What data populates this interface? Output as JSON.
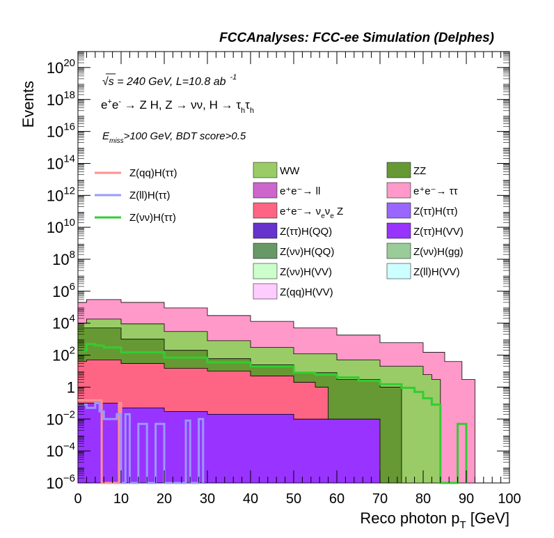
{
  "header": {
    "title": "FCCAnalyses: FCC-ee Simulation (Delphes)"
  },
  "annotations": {
    "line1": "√s = 240 GeV, L=10.8 ab",
    "line1_sup": "-1",
    "line2": "e⁺e⁻ → Z H, Z → νν, H → τhτh",
    "line3": "Emiss>100 GeV, BDT score>0.5"
  },
  "chart_data": {
    "type": "area",
    "title": "FCCAnalyses: FCC-ee Simulation (Delphes)",
    "xlabel": "Reco photon pT [GeV]",
    "ylabel": "Events",
    "xlim": [
      0,
      100
    ],
    "ylim": [
      1e-06,
      1e+21
    ],
    "log_y": true,
    "grid": false,
    "legend_placement": "top",
    "x_ticks": [
      0,
      10,
      20,
      30,
      40,
      50,
      60,
      70,
      80,
      90,
      100
    ],
    "x_tick_labels": [
      "0",
      "10",
      "20",
      "30",
      "40",
      "50",
      "60",
      "70",
      "80",
      "90",
      "100"
    ],
    "y_ticks": [
      1e-06,
      0.0001,
      0.01,
      1,
      100,
      10000.0,
      1000000.0,
      100000000.0,
      10000000000.0,
      1000000000000.0,
      100000000000000.0,
      1e+16,
      1e+18,
      1e+20
    ],
    "y_tick_labels": [
      {
        "base": "10",
        "exp": "−6"
      },
      {
        "base": "10",
        "exp": "−4"
      },
      {
        "base": "10",
        "exp": "−2"
      },
      {
        "base": "1",
        "exp": ""
      },
      {
        "base": "10",
        "exp": "2"
      },
      {
        "base": "10",
        "exp": "4"
      },
      {
        "base": "10",
        "exp": "6"
      },
      {
        "base": "10",
        "exp": "8"
      },
      {
        "base": "10",
        "exp": "10"
      },
      {
        "base": "10",
        "exp": "12"
      },
      {
        "base": "10",
        "exp": "14"
      },
      {
        "base": "10",
        "exp": "16"
      },
      {
        "base": "10",
        "exp": "18"
      },
      {
        "base": "10",
        "exp": "20"
      }
    ],
    "bin_edges": [
      0,
      92
    ],
    "stacked_series": [
      {
        "name": "e⁺e⁻→ ττ",
        "color": "#fe99c9",
        "points": [
          [
            0,
            200000.0
          ],
          [
            2,
            300000.0
          ],
          [
            10,
            200000.0
          ],
          [
            20,
            90000.0
          ],
          [
            30,
            30000.0
          ],
          [
            40,
            13000.0
          ],
          [
            50,
            5000.0
          ],
          [
            60,
            1800.0
          ],
          [
            70,
            600.0
          ],
          [
            80,
            150.0
          ],
          [
            85,
            40.0
          ],
          [
            89,
            3
          ],
          [
            92,
            3
          ]
        ]
      },
      {
        "name": "WW",
        "color": "#99cc66",
        "points": [
          [
            0,
            10000.0
          ],
          [
            2,
            18000.0
          ],
          [
            10,
            9000.0
          ],
          [
            20,
            3000.0
          ],
          [
            30,
            800.0
          ],
          [
            40,
            300.0
          ],
          [
            50,
            120.0
          ],
          [
            60,
            50
          ],
          [
            70,
            20
          ],
          [
            80,
            6
          ],
          [
            82,
            3
          ],
          [
            84,
            0.3
          ]
        ]
      },
      {
        "name": "ZZ",
        "color": "#669933",
        "points": [
          [
            0,
            5000.0
          ],
          [
            2,
            5000.0
          ],
          [
            10,
            1000.0
          ],
          [
            20,
            200.0
          ],
          [
            30,
            60
          ],
          [
            40,
            25
          ],
          [
            50,
            8
          ],
          [
            60,
            3
          ],
          [
            70,
            1
          ],
          [
            75,
            0.5
          ]
        ]
      },
      {
        "name": "e⁺e⁻→ νeνe Z",
        "color": "#fe6584",
        "points": [
          [
            0,
            40
          ],
          [
            2,
            50
          ],
          [
            10,
            30
          ],
          [
            20,
            15
          ],
          [
            30,
            10
          ],
          [
            40,
            5
          ],
          [
            50,
            2
          ],
          [
            55,
            1
          ],
          [
            58,
            0.5
          ]
        ]
      },
      {
        "name": "Z(ττ)H(VV)",
        "color": "#9933ff",
        "points": [
          [
            0,
            0.1
          ],
          [
            10,
            0.05
          ],
          [
            20,
            0.03
          ],
          [
            30,
            0.02
          ],
          [
            40,
            0.02
          ],
          [
            50,
            0.01
          ],
          [
            60,
            0.01
          ],
          [
            70,
            0.005
          ]
        ]
      }
    ],
    "series": [
      {
        "name": "Z(qq)H(ττ)",
        "color": "#ff8f8f",
        "type": "step",
        "points": [
          [
            0,
            0.15
          ],
          [
            5,
            0.15
          ],
          [
            5.5,
            1e-06
          ],
          [
            9,
            1e-06
          ],
          [
            9.5,
            0.1
          ],
          [
            10,
            1e-06
          ]
        ]
      },
      {
        "name": "Z(ll)H(ττ)",
        "color": "#9999ff",
        "type": "step",
        "points": [
          [
            0,
            0.08
          ],
          [
            2,
            0.05
          ],
          [
            4,
            0.1
          ],
          [
            5,
            0.03
          ],
          [
            6,
            0.01
          ],
          [
            9,
            0.02
          ],
          [
            10,
            1e-06
          ],
          [
            11,
            0.02
          ],
          [
            12,
            1e-06
          ],
          [
            14,
            0.005
          ],
          [
            16,
            1e-06
          ],
          [
            18,
            0.005
          ],
          [
            20,
            1e-06
          ],
          [
            25,
            0.008
          ],
          [
            26,
            1e-06
          ],
          [
            28,
            0.01
          ],
          [
            29,
            1e-06
          ]
        ]
      },
      {
        "name": "Z(νν)H(ττ)",
        "color": "#33cc33",
        "type": "step",
        "points": [
          [
            1,
            200
          ],
          [
            2,
            500
          ],
          [
            4,
            400
          ],
          [
            6,
            300
          ],
          [
            10,
            150
          ],
          [
            20,
            70
          ],
          [
            30,
            35
          ],
          [
            40,
            20
          ],
          [
            50,
            8
          ],
          [
            55,
            6
          ],
          [
            60,
            4
          ],
          [
            65,
            2.5
          ],
          [
            70,
            1.5
          ],
          [
            75,
            0.9
          ],
          [
            78,
            0.5
          ],
          [
            80,
            0.2
          ],
          [
            82,
            0.08
          ],
          [
            84,
            1e-06
          ],
          [
            88,
            0.005
          ],
          [
            90,
            1e-06
          ]
        ]
      }
    ],
    "legend": {
      "col1": [
        "Z(qq)H(ττ)",
        "Z(ll)H(ττ)",
        "Z(νν)H(ττ)"
      ],
      "col2": [
        "WW",
        "e⁺e⁻→ ll",
        "e⁺e⁻→ νeνe Z",
        "Z(ττ)H(QQ)",
        "Z(νν)H(QQ)",
        "Z(νν)H(VV)",
        "Z(qq)H(VV)"
      ],
      "col3": [
        "ZZ",
        "e⁺e⁻→ ττ",
        "Z(ττ)H(ττ)",
        "Z(ττ)H(VV)",
        "Z(νν)H(gg)",
        "Z(ll)H(VV)"
      ]
    },
    "legend_colors": {
      "WW": "#99cc66",
      "ZZ": "#669933",
      "e⁺e⁻→ ll": "#cc66cc",
      "e⁺e⁻→ ττ": "#fe99c9",
      "e⁺e⁻→ νeνe Z": "#fe6584",
      "Z(ττ)H(ττ)": "#9966ff",
      "Z(ττ)H(QQ)": "#6633cc",
      "Z(ττ)H(VV)": "#9933ff",
      "Z(νν)H(QQ)": "#669966",
      "Z(νν)H(gg)": "#99cc99",
      "Z(νν)H(VV)": "#ccffcc",
      "Z(ll)H(VV)": "#ccffff",
      "Z(qq)H(VV)": "#ffccff",
      "Z(qq)H(ττ)": "#ff8f8f",
      "Z(ll)H(ττ)": "#9999ff",
      "Z(νν)H(ττ)": "#33cc33"
    }
  }
}
